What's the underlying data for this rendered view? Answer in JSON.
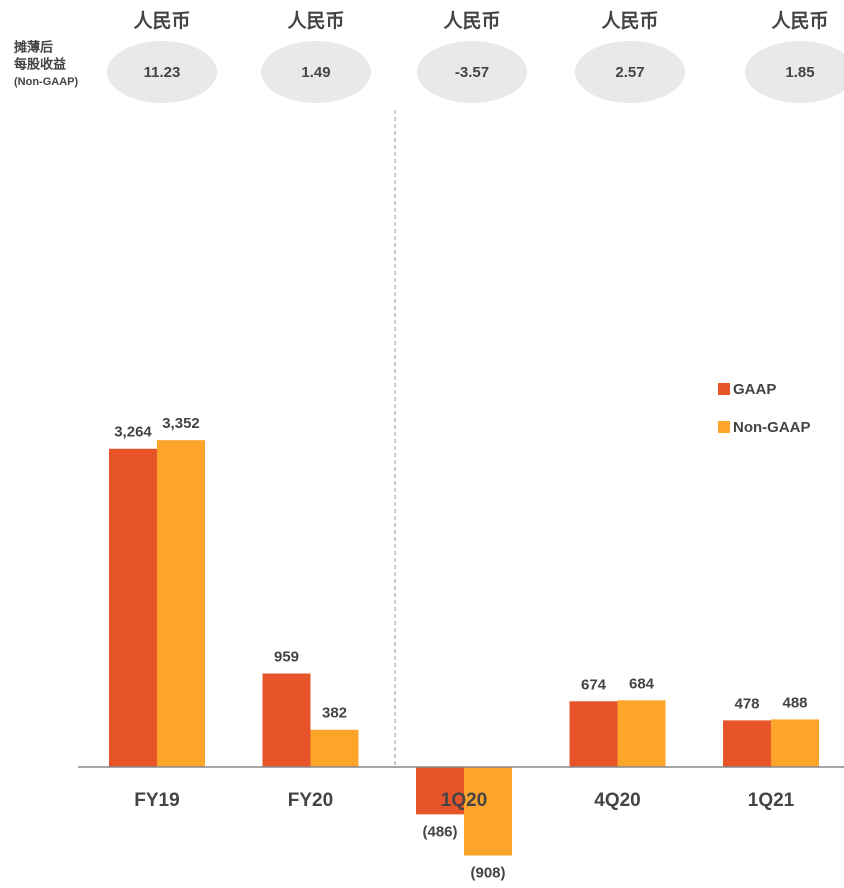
{
  "chart_data": {
    "type": "bar",
    "categories": [
      "FY19",
      "FY20",
      "1Q20",
      "4Q20",
      "1Q21"
    ],
    "series": [
      {
        "name": "GAAP",
        "color": "#e8542a",
        "values": [
          3264,
          959,
          -486,
          674,
          478
        ],
        "value_labels": [
          "3,264",
          "959",
          "(486)",
          "674",
          "478"
        ]
      },
      {
        "name": "Non-GAAP",
        "color": "#fca52a",
        "values": [
          3352,
          382,
          -908,
          684,
          488
        ],
        "value_labels": [
          "3,352",
          "382",
          "(908)",
          "684",
          "488"
        ]
      }
    ]
  },
  "eps": {
    "label_lines": [
      "摊薄后",
      "每股收益",
      "(Non-GAAP)"
    ],
    "currency": [
      "人民币",
      "人民币",
      "人民币",
      "人民币",
      "人民币"
    ],
    "values": [
      11.23,
      1.49,
      -3.57,
      2.57,
      1.85
    ]
  }
}
